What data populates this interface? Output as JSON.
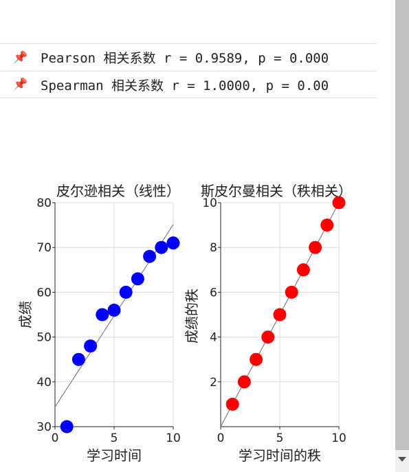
{
  "output": {
    "lines": [
      {
        "icon": "pushpin-icon",
        "glyph": "📌",
        "text": "Pearson 相关系数 r = 0.9589, p = 0.000"
      },
      {
        "icon": "pushpin-icon",
        "glyph": "📌",
        "text": "Spearman 相关系数 r = 1.0000, p = 0.00"
      }
    ]
  },
  "chart_data": [
    {
      "type": "scatter",
      "title": "皮尔逊相关（线性）",
      "xlabel": "学习时间",
      "ylabel": "成绩",
      "xlim": [
        0,
        10
      ],
      "ylim": [
        30,
        80
      ],
      "xticks": [
        0,
        5,
        10
      ],
      "yticks": [
        30,
        40,
        50,
        60,
        70,
        80
      ],
      "grid": true,
      "marker_color": "#0000ff",
      "line_color": "#808080",
      "x": [
        1,
        2,
        3,
        4,
        5,
        6,
        7,
        8,
        9,
        10
      ],
      "y": [
        30,
        45,
        48,
        55,
        56,
        60,
        63,
        68,
        70,
        71
      ],
      "fit_line": {
        "intercept": 34.4,
        "slope": 4.07
      }
    },
    {
      "type": "scatter",
      "title": "斯皮尔曼相关（秩相关）",
      "xlabel": "学习时间的秩",
      "ylabel": "成绩的秩",
      "xlim": [
        0,
        10
      ],
      "ylim": [
        0,
        10
      ],
      "xticks": [
        0,
        5,
        10
      ],
      "yticks": [
        2,
        4,
        6,
        8,
        10
      ],
      "grid": true,
      "marker_color": "#ff0000",
      "line_color": "#808080",
      "x": [
        1,
        2,
        3,
        4,
        5,
        6,
        7,
        8,
        9,
        10
      ],
      "y": [
        1,
        2,
        3,
        4,
        5,
        6,
        7,
        8,
        9,
        10
      ],
      "fit_line": {
        "intercept": 0,
        "slope": 1
      }
    }
  ]
}
